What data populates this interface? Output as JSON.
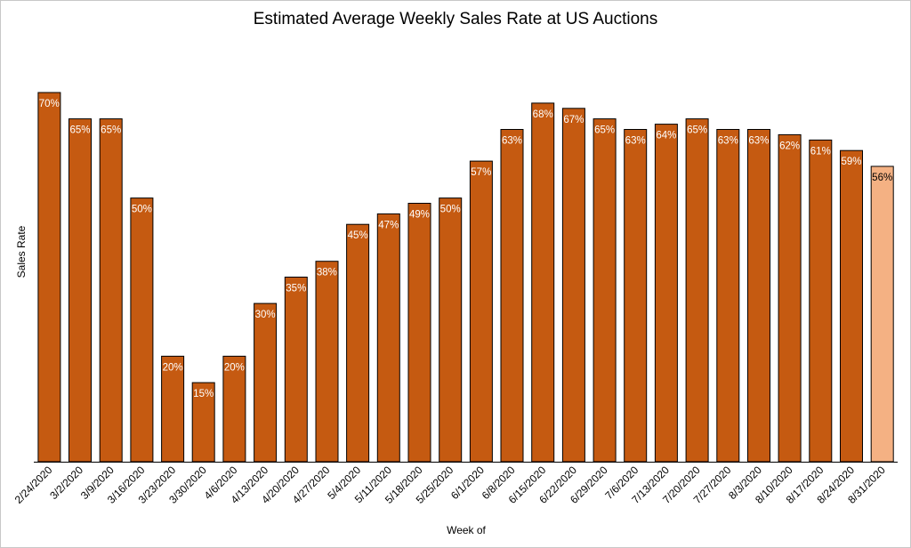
{
  "chart_data": {
    "type": "bar",
    "title": "Estimated Average Weekly Sales Rate at US Auctions",
    "xlabel": "Week of",
    "ylabel": "Sales Rate",
    "categories": [
      "2/24/2020",
      "3/2/2020",
      "3/9/2020",
      "3/16/2020",
      "3/23/2020",
      "3/30/2020",
      "4/6/2020",
      "4/13/2020",
      "4/20/2020",
      "4/27/2020",
      "5/4/2020",
      "5/11/2020",
      "5/18/2020",
      "5/25/2020",
      "6/1/2020",
      "6/8/2020",
      "6/15/2020",
      "6/22/2020",
      "6/29/2020",
      "7/6/2020",
      "7/13/2020",
      "7/20/2020",
      "7/27/2020",
      "8/3/2020",
      "8/10/2020",
      "8/17/2020",
      "8/24/2020",
      "8/31/2020"
    ],
    "values": [
      70,
      65,
      65,
      50,
      20,
      15,
      20,
      30,
      35,
      38,
      45,
      47,
      49,
      50,
      57,
      63,
      68,
      67,
      65,
      63,
      64,
      65,
      63,
      63,
      62,
      61,
      59,
      56
    ],
    "data_labels": [
      "70%",
      "65%",
      "65%",
      "50%",
      "20%",
      "15%",
      "20%",
      "30%",
      "35%",
      "38%",
      "45%",
      "47%",
      "49%",
      "50%",
      "57%",
      "63%",
      "68%",
      "67%",
      "65%",
      "63%",
      "64%",
      "65%",
      "63%",
      "63%",
      "62%",
      "61%",
      "59%",
      "56%"
    ],
    "ylim": [
      0,
      70
    ],
    "grid": false,
    "colors": {
      "bar": "#c55a11",
      "highlight_bar": "#f4b183",
      "bar_outline": "#000000",
      "label_on_bar": "#ffffff",
      "label_on_highlight": "#000000"
    },
    "highlighted_category": "8/31/2020"
  }
}
